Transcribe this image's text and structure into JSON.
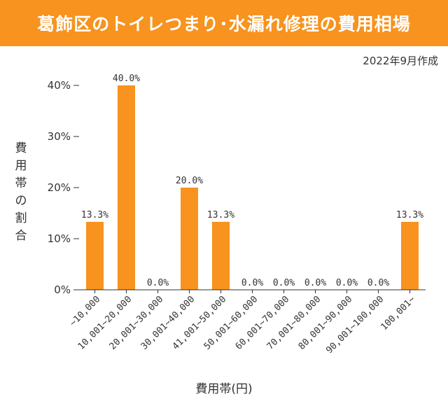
{
  "title": "葛飾区のトイレつまり･水漏れ修理の費用相場",
  "date_label": "2022年9月作成",
  "colors": {
    "accent": "#f7931e",
    "axis": "#333333",
    "text": "#333333",
    "background": "#ffffff"
  },
  "chart_data": {
    "type": "bar",
    "title": "葛飾区のトイレつまり･水漏れ修理の費用相場",
    "xlabel": "費用帯(円)",
    "ylabel": "費用帯の割合",
    "ylim": [
      0,
      40
    ],
    "yticks": [
      "0%",
      "10%",
      "20%",
      "30%",
      "40%"
    ],
    "ytick_values": [
      0,
      10,
      20,
      30,
      40
    ],
    "grid": false,
    "categories": [
      "~10,000",
      "10,001~20,000",
      "20,001~30,000",
      "30,001~40,000",
      "41,001~50,000",
      "50,001~60,000",
      "60,001~70,000",
      "70,001~80,000",
      "80,001~90,000",
      "90,001~100,000",
      "100,001~"
    ],
    "values": [
      13.3,
      40.0,
      0.0,
      20.0,
      13.3,
      0.0,
      0.0,
      0.0,
      0.0,
      0.0,
      13.3
    ],
    "value_labels": [
      "13.3%",
      "40.0%",
      "0.0%",
      "20.0%",
      "13.3%",
      "0.0%",
      "0.0%",
      "0.0%",
      "0.0%",
      "0.0%",
      "13.3%"
    ]
  }
}
